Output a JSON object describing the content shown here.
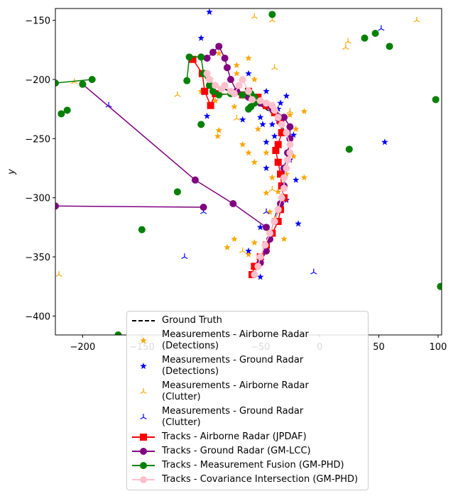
{
  "chart_data": {
    "type": "scatter",
    "ylabel": "y",
    "xlim": [
      -223,
      103
    ],
    "ylim": [
      -416,
      -140
    ],
    "xticks": [
      {
        "value": -200,
        "label": "−200"
      },
      {
        "value": -150,
        "label": "−150"
      },
      {
        "value": -100,
        "label": "−100"
      },
      {
        "value": -50,
        "label": "−50"
      },
      0,
      50,
      100
    ],
    "yticks": [
      {
        "value": -400,
        "label": "−400"
      },
      {
        "value": -350,
        "label": "−350"
      },
      {
        "value": -300,
        "label": "−300"
      },
      {
        "value": -250,
        "label": "−250"
      },
      {
        "value": -200,
        "label": "−200"
      },
      {
        "value": -150,
        "label": "−150"
      }
    ],
    "legend": "lower center",
    "series": [
      {
        "name": "Ground Truth",
        "color": "#000000",
        "marker": "none",
        "line": "dashed",
        "x": [
          -90,
          -60,
          -35,
          -25,
          -30,
          -40,
          -55
        ],
        "y": [
          -205,
          -215,
          -232,
          -255,
          -290,
          -325,
          -365
        ]
      },
      {
        "name": "Measurements - Airborne Radar\n(Detections)",
        "color": "#ffa500",
        "marker": "star",
        "line": "none",
        "x": [
          -92,
          -88,
          -85,
          -86,
          -72,
          -70,
          -70,
          -60,
          -55,
          -48,
          -65,
          -60,
          -55,
          -45,
          -52,
          -40,
          -45,
          -42,
          -38,
          -35,
          -28,
          -22,
          -20,
          -25,
          -13,
          -13,
          -30,
          -72,
          -78,
          -60,
          -55,
          -85,
          -100
        ],
        "y": [
          -200,
          -218,
          -243,
          -248,
          -223,
          -188,
          -195,
          -182,
          -200,
          -220,
          -255,
          -262,
          -270,
          -262,
          -242,
          -283,
          -296,
          -312,
          -318,
          -295,
          -280,
          -265,
          -242,
          -230,
          -227,
          -283,
          -335,
          -335,
          -342,
          -348,
          -338,
          -178,
          -210
        ]
      },
      {
        "name": "Measurements - Ground Radar\n(Detections)",
        "color": "#0000ff",
        "marker": "star",
        "line": "none",
        "x": [
          -93,
          -100,
          -95,
          -97,
          -65,
          -50,
          -45,
          -38,
          -35,
          -33,
          -28,
          -22,
          -25,
          -20,
          -18,
          -28,
          -42,
          -50,
          -60,
          -50,
          -40,
          -48,
          -60,
          -45,
          -35,
          -45,
          55
        ],
        "y": [
          -143,
          -165,
          -231,
          -211,
          -234,
          -232,
          -253,
          -248,
          -225,
          -220,
          -214,
          -247,
          -268,
          -285,
          -322,
          -302,
          -330,
          -325,
          -345,
          -367,
          -238,
          -238,
          -195,
          -210,
          -235,
          -275,
          -253
        ]
      },
      {
        "name": "Measurements - Airborne Radar\n(Clutter)",
        "color": "#ffa500",
        "marker": "tri",
        "line": "none",
        "x": [
          -55,
          -40,
          82,
          22,
          24,
          -38,
          -120,
          -207,
          -220,
          -70,
          -65,
          -40,
          -25
        ],
        "y": [
          -147,
          -150,
          -150,
          -173,
          -168,
          -190,
          -213,
          -202,
          -365,
          -233,
          -345,
          -293,
          -227
        ]
      },
      {
        "name": "Measurements - Ground Radar\n(Clutter)",
        "color": "#0000ff",
        "marker": "tri",
        "line": "none",
        "x": [
          52,
          -178,
          -98,
          -114,
          -5,
          -45,
          -70
        ],
        "y": [
          -157,
          -222,
          -312,
          -350,
          -363,
          -312,
          -210
        ]
      },
      {
        "name": "Tracks - Airborne Radar (JPDAF)",
        "color": "#ff0000",
        "marker": "square",
        "line": "solid",
        "x": [
          -107,
          -99,
          -97,
          -92,
          -88,
          -65,
          -60,
          -52,
          -45,
          -38,
          -33,
          -32,
          -35,
          -37,
          -35,
          -33,
          -32,
          -30,
          -33,
          -35,
          -40,
          -45,
          -50,
          -55,
          -57
        ],
        "y": [
          -183,
          -195,
          -210,
          -222,
          -212,
          -213,
          -210,
          -215,
          -222,
          -228,
          -235,
          -245,
          -255,
          -260,
          -270,
          -280,
          -290,
          -300,
          -310,
          -320,
          -330,
          -340,
          -350,
          -358,
          -365
        ]
      },
      {
        "name": "Tracks - Ground Radar (GM-LCC)",
        "color": "#800080",
        "marker": "circle",
        "line": "solid",
        "x": [
          -223,
          -98,
          null,
          -200,
          -105,
          -73,
          -45,
          -42,
          -45,
          -50,
          null,
          -95,
          -90,
          -85,
          -80,
          -78,
          -75,
          -70,
          -60,
          -50,
          -40,
          -30,
          -25,
          -25,
          -27,
          -30,
          -30,
          -33,
          -38
        ],
        "y": [
          -307,
          -308,
          null,
          -204,
          -285,
          -305,
          -325,
          -335,
          -345,
          -355,
          null,
          -182,
          -177,
          -172,
          -182,
          -190,
          -200,
          -210,
          -215,
          -220,
          -225,
          -232,
          -240,
          -250,
          -262,
          -275,
          -290,
          -305,
          -320
        ]
      },
      {
        "name": "Tracks - Measurement Fusion (GM-PHD)",
        "color": "#008000",
        "marker": "circle",
        "line": "solid",
        "x": [
          -223,
          -192,
          null,
          -200,
          null,
          -40,
          null,
          -218,
          null,
          -213,
          null,
          -120,
          null,
          -150,
          null,
          -100,
          null,
          -170,
          null,
          25,
          null,
          38,
          null,
          47,
          null,
          59,
          null,
          98,
          null,
          102,
          null,
          -112,
          -110,
          -100,
          -98,
          -93,
          -90,
          -85,
          -75,
          -65,
          -58,
          -55,
          -55,
          -58,
          -60
        ],
        "y": [
          -203,
          -200,
          null,
          -204,
          null,
          -145,
          null,
          -229,
          null,
          -226,
          null,
          -295,
          null,
          -327,
          null,
          -238,
          null,
          -416,
          null,
          -259,
          null,
          -165,
          null,
          -161,
          null,
          -172,
          null,
          -217,
          null,
          -375,
          null,
          -201,
          -181,
          -181,
          -195,
          -205,
          -210,
          -213,
          -212,
          -213,
          -212,
          -215,
          -220,
          -223,
          -225
        ]
      },
      {
        "name": "Tracks - Covariance Intersection (GM-PHD)",
        "color": "#ffc0cb",
        "marker": "circle",
        "line": "solid",
        "x": [
          -95,
          -93,
          -88,
          -83,
          -80,
          -75,
          -72,
          -68,
          -65,
          -60,
          -57,
          -50,
          -45,
          -40,
          -38,
          -35,
          -32,
          -28,
          -25,
          -25,
          -27,
          -28,
          -30,
          -30,
          -32,
          -35,
          -38,
          -42,
          -46,
          -50,
          -52,
          -55
        ],
        "y": [
          -195,
          -200,
          -205,
          -208,
          -205,
          -210,
          -212,
          -205,
          -200,
          -210,
          -217,
          -218,
          -220,
          -222,
          -226,
          -232,
          -238,
          -245,
          -255,
          -262,
          -268,
          -275,
          -283,
          -292,
          -300,
          -310,
          -320,
          -330,
          -340,
          -350,
          -358,
          -365
        ]
      }
    ]
  }
}
